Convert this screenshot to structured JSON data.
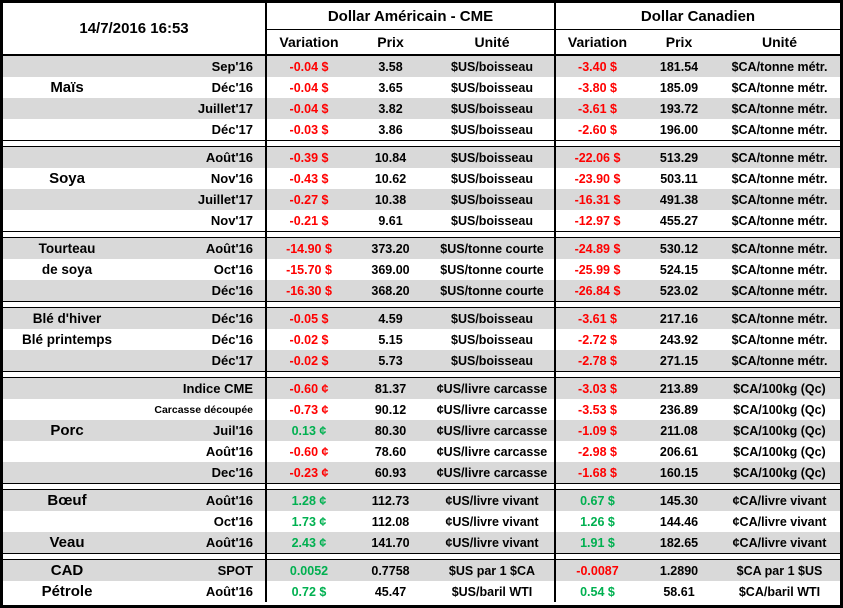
{
  "meta": {
    "timestamp": "14/7/2016 16:53"
  },
  "colors": {
    "negative": "#FF0000",
    "positive": "#00B050",
    "stripe": "#D9D9D9"
  },
  "header": {
    "us_group": "Dollar Américain - CME",
    "ca_group": "Dollar Canadien",
    "cols": [
      "Variation",
      "Prix",
      "Unité"
    ]
  },
  "sections": [
    {
      "id": "mais",
      "labels": [
        {
          "text": "Maïs",
          "row": 1
        }
      ],
      "rows": [
        {
          "month": "Sep'16",
          "us_var": "-0.04 $",
          "us_dir": "neg",
          "us_prix": "3.58",
          "us_unit": "$US/boisseau",
          "ca_var": "-3.40 $",
          "ca_dir": "neg",
          "ca_prix": "181.54",
          "ca_unit": "$CA/tonne métr."
        },
        {
          "month": "Déc'16",
          "us_var": "-0.04 $",
          "us_dir": "neg",
          "us_prix": "3.65",
          "us_unit": "$US/boisseau",
          "ca_var": "-3.80 $",
          "ca_dir": "neg",
          "ca_prix": "185.09",
          "ca_unit": "$CA/tonne métr."
        },
        {
          "month": "Juillet'17",
          "us_var": "-0.04 $",
          "us_dir": "neg",
          "us_prix": "3.82",
          "us_unit": "$US/boisseau",
          "ca_var": "-3.61 $",
          "ca_dir": "neg",
          "ca_prix": "193.72",
          "ca_unit": "$CA/tonne métr."
        },
        {
          "month": "Déc'17",
          "us_var": "-0.03 $",
          "us_dir": "neg",
          "us_prix": "3.86",
          "us_unit": "$US/boisseau",
          "ca_var": "-2.60 $",
          "ca_dir": "neg",
          "ca_prix": "196.00",
          "ca_unit": "$CA/tonne métr."
        }
      ]
    },
    {
      "id": "soya",
      "labels": [
        {
          "text": "Soya",
          "row": 1
        }
      ],
      "rows": [
        {
          "month": "Août'16",
          "us_var": "-0.39 $",
          "us_dir": "neg",
          "us_prix": "10.84",
          "us_unit": "$US/boisseau",
          "ca_var": "-22.06 $",
          "ca_dir": "neg",
          "ca_prix": "513.29",
          "ca_unit": "$CA/tonne métr."
        },
        {
          "month": "Nov'16",
          "us_var": "-0.43 $",
          "us_dir": "neg",
          "us_prix": "10.62",
          "us_unit": "$US/boisseau",
          "ca_var": "-23.90 $",
          "ca_dir": "neg",
          "ca_prix": "503.11",
          "ca_unit": "$CA/tonne métr."
        },
        {
          "month": "Juillet'17",
          "us_var": "-0.27 $",
          "us_dir": "neg",
          "us_prix": "10.38",
          "us_unit": "$US/boisseau",
          "ca_var": "-16.31 $",
          "ca_dir": "neg",
          "ca_prix": "491.38",
          "ca_unit": "$CA/tonne métr."
        },
        {
          "month": "Nov'17",
          "us_var": "-0.21 $",
          "us_dir": "neg",
          "us_prix": "9.61",
          "us_unit": "$US/boisseau",
          "ca_var": "-12.97 $",
          "ca_dir": "neg",
          "ca_prix": "455.27",
          "ca_unit": "$CA/tonne métr."
        }
      ]
    },
    {
      "id": "tourteau",
      "labels": [
        {
          "text": "Tourteau",
          "row": 0,
          "small": true
        },
        {
          "text": "de soya",
          "row": 1,
          "small": true
        }
      ],
      "rows": [
        {
          "month": "Août'16",
          "us_var": "-14.90 $",
          "us_dir": "neg",
          "us_prix": "373.20",
          "us_unit": "$US/tonne courte",
          "ca_var": "-24.89 $",
          "ca_dir": "neg",
          "ca_prix": "530.12",
          "ca_unit": "$CA/tonne métr."
        },
        {
          "month": "Oct'16",
          "us_var": "-15.70 $",
          "us_dir": "neg",
          "us_prix": "369.00",
          "us_unit": "$US/tonne courte",
          "ca_var": "-25.99 $",
          "ca_dir": "neg",
          "ca_prix": "524.15",
          "ca_unit": "$CA/tonne métr."
        },
        {
          "month": "Déc'16",
          "us_var": "-16.30 $",
          "us_dir": "neg",
          "us_prix": "368.20",
          "us_unit": "$US/tonne courte",
          "ca_var": "-26.84 $",
          "ca_dir": "neg",
          "ca_prix": "523.02",
          "ca_unit": "$CA/tonne métr."
        }
      ]
    },
    {
      "id": "ble",
      "labels": [
        {
          "text": "Blé d'hiver",
          "row": 0,
          "small": true
        },
        {
          "text": "Blé printemps",
          "row": 1,
          "small": true
        }
      ],
      "rows": [
        {
          "month": "Déc'16",
          "us_var": "-0.05 $",
          "us_dir": "neg",
          "us_prix": "4.59",
          "us_unit": "$US/boisseau",
          "ca_var": "-3.61 $",
          "ca_dir": "neg",
          "ca_prix": "217.16",
          "ca_unit": "$CA/tonne métr."
        },
        {
          "month": "Déc'16",
          "us_var": "-0.02 $",
          "us_dir": "neg",
          "us_prix": "5.15",
          "us_unit": "$US/boisseau",
          "ca_var": "-2.72 $",
          "ca_dir": "neg",
          "ca_prix": "243.92",
          "ca_unit": "$CA/tonne métr."
        },
        {
          "month": "Déc'17",
          "us_var": "-0.02 $",
          "us_dir": "neg",
          "us_prix": "5.73",
          "us_unit": "$US/boisseau",
          "ca_var": "-2.78 $",
          "ca_dir": "neg",
          "ca_prix": "271.15",
          "ca_unit": "$CA/tonne métr."
        }
      ]
    },
    {
      "id": "porc",
      "labels": [
        {
          "text": "Porc",
          "row": 2
        }
      ],
      "rows": [
        {
          "month": "Indice CME",
          "us_var": "-0.60 ¢",
          "us_dir": "neg",
          "us_prix": "81.37",
          "us_unit": "¢US/livre carcasse",
          "ca_var": "-3.03 $",
          "ca_dir": "neg",
          "ca_prix": "213.89",
          "ca_unit": "$CA/100kg (Qc)"
        },
        {
          "month": "Carcasse découpée",
          "small": true,
          "us_var": "-0.73 ¢",
          "us_dir": "neg",
          "us_prix": "90.12",
          "us_unit": "¢US/livre carcasse",
          "ca_var": "-3.53 $",
          "ca_dir": "neg",
          "ca_prix": "236.89",
          "ca_unit": "$CA/100kg (Qc)"
        },
        {
          "month": "Juil'16",
          "us_var": "0.13 ¢",
          "us_dir": "pos",
          "us_prix": "80.30",
          "us_unit": "¢US/livre carcasse",
          "ca_var": "-1.09 $",
          "ca_dir": "neg",
          "ca_prix": "211.08",
          "ca_unit": "$CA/100kg (Qc)"
        },
        {
          "month": "Août'16",
          "us_var": "-0.60 ¢",
          "us_dir": "neg",
          "us_prix": "78.60",
          "us_unit": "¢US/livre carcasse",
          "ca_var": "-2.98 $",
          "ca_dir": "neg",
          "ca_prix": "206.61",
          "ca_unit": "$CA/100kg (Qc)"
        },
        {
          "month": "Dec'16",
          "us_var": "-0.23 ¢",
          "us_dir": "neg",
          "us_prix": "60.93",
          "us_unit": "¢US/livre carcasse",
          "ca_var": "-1.68 $",
          "ca_dir": "neg",
          "ca_prix": "160.15",
          "ca_unit": "$CA/100kg (Qc)"
        }
      ]
    },
    {
      "id": "boeuf-veau",
      "labels": [
        {
          "text": "Bœuf",
          "row": 0
        },
        {
          "text": "Veau",
          "row": 2
        }
      ],
      "rows": [
        {
          "month": "Août'16",
          "us_var": "1.28 ¢",
          "us_dir": "pos",
          "us_prix": "112.73",
          "us_unit": "¢US/livre vivant",
          "ca_var": "0.67 $",
          "ca_dir": "pos",
          "ca_prix": "145.30",
          "ca_unit": "¢CA/livre vivant"
        },
        {
          "month": "Oct'16",
          "us_var": "1.73 ¢",
          "us_dir": "pos",
          "us_prix": "112.08",
          "us_unit": "¢US/livre vivant",
          "ca_var": "1.26 $",
          "ca_dir": "pos",
          "ca_prix": "144.46",
          "ca_unit": "¢CA/livre vivant"
        },
        {
          "month": "Août'16",
          "us_var": "2.43 ¢",
          "us_dir": "pos",
          "us_prix": "141.70",
          "us_unit": "¢US/livre vivant",
          "ca_var": "1.91 $",
          "ca_dir": "pos",
          "ca_prix": "182.65",
          "ca_unit": "¢CA/livre vivant"
        }
      ]
    },
    {
      "id": "cad-petrole",
      "labels": [
        {
          "text": "CAD",
          "row": 0
        },
        {
          "text": "Pétrole",
          "row": 1
        }
      ],
      "rows": [
        {
          "month": "SPOT",
          "us_var": "0.0052",
          "us_dir": "pos",
          "us_prix": "0.7758",
          "us_unit": "$US par 1 $CA",
          "ca_var": "-0.0087",
          "ca_dir": "neg",
          "ca_prix": "1.2890",
          "ca_unit": "$CA par 1 $US"
        },
        {
          "month": "Août'16",
          "us_var": "0.72 $",
          "us_dir": "pos",
          "us_prix": "45.47",
          "us_unit": "$US/baril WTI",
          "ca_var": "0.54 $",
          "ca_dir": "pos",
          "ca_prix": "58.61",
          "ca_unit": "$CA/baril WTI"
        }
      ]
    }
  ]
}
